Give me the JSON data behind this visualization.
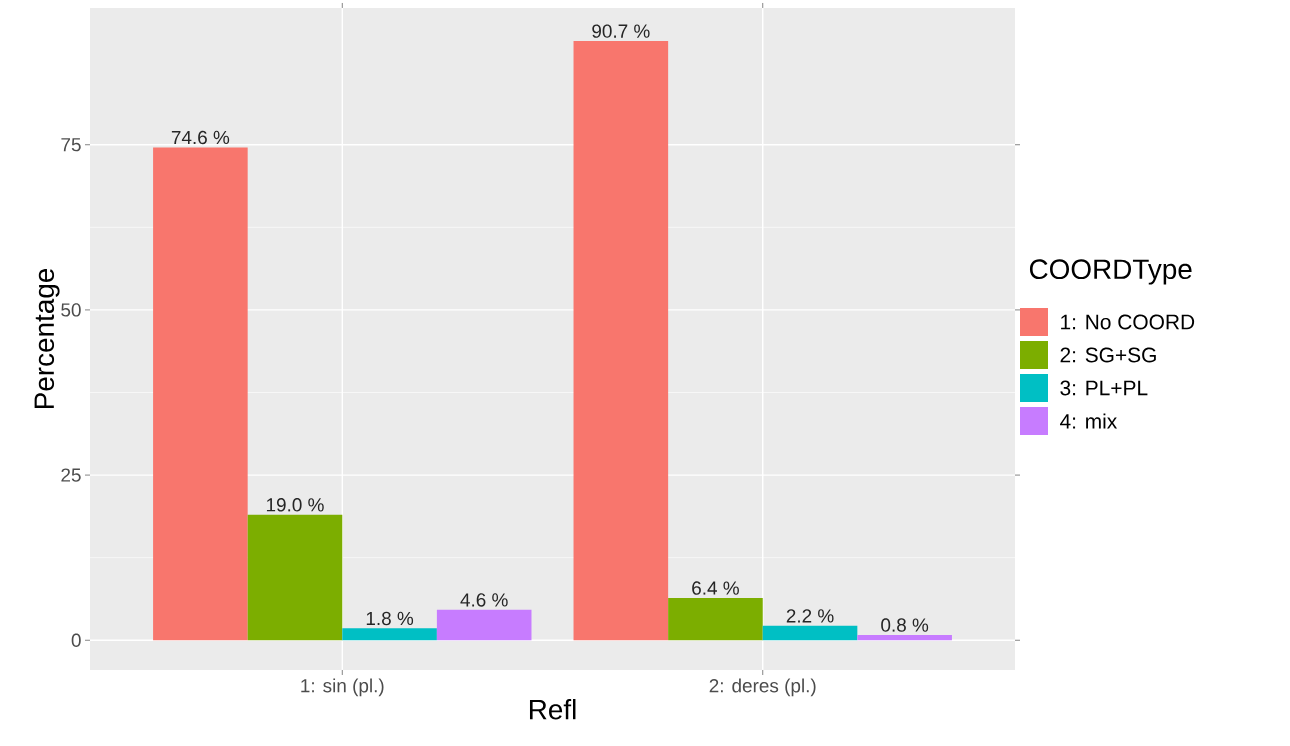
{
  "chart_data": {
    "type": "bar",
    "xlabel": "Refl",
    "ylabel": "Percentage",
    "legend_title": "COORDType",
    "categories": [
      "1: sin (pl.)",
      "2: deres (pl.)"
    ],
    "series": [
      {
        "name": "1: No COORD",
        "color": "#f8766d",
        "values": [
          74.6,
          90.7
        ],
        "value_labels": [
          "74.6 %",
          "90.7 %"
        ]
      },
      {
        "name": "2: SG+SG",
        "color": "#7cae00",
        "values": [
          19.0,
          6.4
        ],
        "value_labels": [
          "19.0 %",
          "6.4 %"
        ]
      },
      {
        "name": "3: PL+PL",
        "color": "#00bfc4",
        "values": [
          1.8,
          2.2
        ],
        "value_labels": [
          "1.8 %",
          "2.2 %"
        ]
      },
      {
        "name": "4: mix",
        "color": "#c77cff",
        "values": [
          4.6,
          0.8
        ],
        "value_labels": [
          "4.6 %",
          "0.8 %"
        ]
      }
    ],
    "ylim": [
      -4.5,
      95.7
    ],
    "yticks": [
      0,
      25,
      50,
      75
    ],
    "grid": true,
    "legend": "right"
  }
}
